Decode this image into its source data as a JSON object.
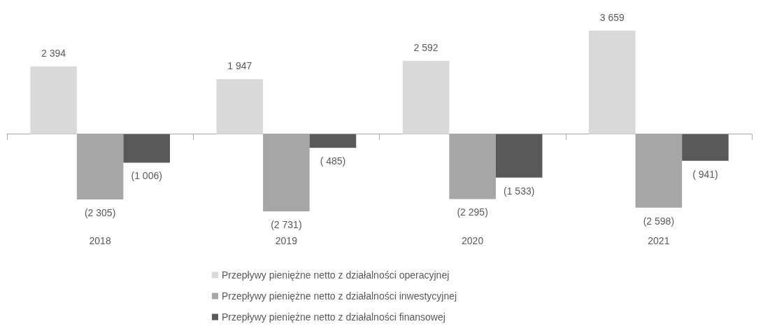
{
  "chart_data": {
    "type": "bar",
    "categories": [
      "2018",
      "2019",
      "2020",
      "2021"
    ],
    "series": [
      {
        "name": "Przepływy pieniężne netto z działalności operacyjnej",
        "color": "#d9d9d9",
        "values": [
          2394,
          1947,
          2592,
          3659
        ],
        "value_labels": [
          "2 394",
          "1 947",
          "2 592",
          "3 659"
        ]
      },
      {
        "name": "Przepływy pieniężne netto z działalności inwestycyjnej",
        "color": "#a6a6a6",
        "values": [
          -2305,
          -2731,
          -2295,
          -2598
        ],
        "value_labels": [
          "(2 305)",
          "(2 731)",
          "(2 295)",
          "(2 598)"
        ]
      },
      {
        "name": "Przepływy pieniężne netto z działalności finansowej",
        "color": "#595959",
        "values": [
          -1006,
          -485,
          -1533,
          -941
        ],
        "value_labels": [
          "(1 006)",
          "( 485)",
          "(1 533)",
          "( 941)"
        ]
      }
    ],
    "legend": "bottom"
  }
}
